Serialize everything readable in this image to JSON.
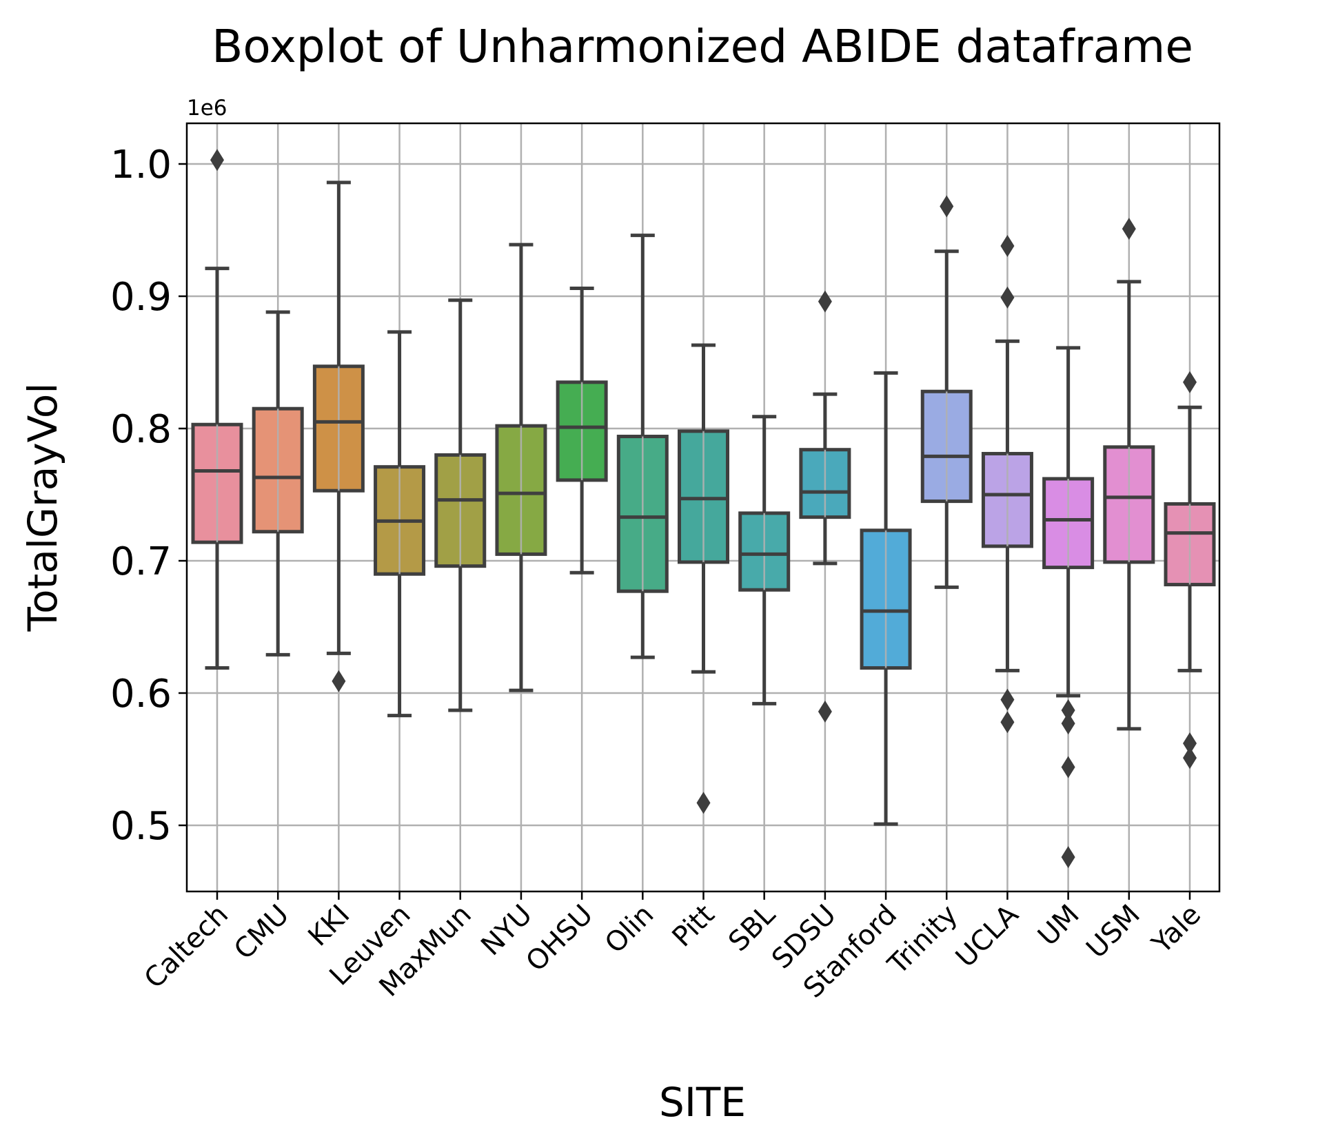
{
  "chart_data": {
    "type": "box",
    "title": "Boxplot of Unharmonized ABIDE dataframe",
    "xlabel": "SITE",
    "ylabel": "TotalGrayVol",
    "y_offset_label": "1e6",
    "y_scale": 1000000,
    "ylim": [
      0.45,
      1.03
    ],
    "yticks": [
      0.5,
      0.6,
      0.7,
      0.8,
      0.9,
      1.0
    ],
    "ytick_labels": [
      "0.5",
      "0.6",
      "0.7",
      "0.8",
      "0.9",
      "1.0"
    ],
    "grid": true,
    "categories": [
      "Caltech",
      "CMU",
      "KKI",
      "Leuven",
      "MaxMun",
      "NYU",
      "OHSU",
      "Olin",
      "Pitt",
      "SBL",
      "SDSU",
      "Stanford",
      "Trinity",
      "UCLA",
      "UM",
      "USM",
      "Yale"
    ],
    "boxes": [
      {
        "whislo": 0.619,
        "q1": 0.714,
        "med": 0.768,
        "q3": 0.803,
        "whishi": 0.921,
        "fliers": [
          1.003
        ],
        "color": "#e8909d"
      },
      {
        "whislo": 0.629,
        "q1": 0.722,
        "med": 0.763,
        "q3": 0.815,
        "whishi": 0.888,
        "fliers": [],
        "color": "#e59376"
      },
      {
        "whislo": 0.63,
        "q1": 0.753,
        "med": 0.805,
        "q3": 0.847,
        "whishi": 0.986,
        "fliers": [
          0.609
        ],
        "color": "#ce9147"
      },
      {
        "whislo": 0.583,
        "q1": 0.69,
        "med": 0.73,
        "q3": 0.771,
        "whishi": 0.873,
        "fliers": [],
        "color": "#b49a47"
      },
      {
        "whislo": 0.587,
        "q1": 0.696,
        "med": 0.746,
        "q3": 0.78,
        "whishi": 0.897,
        "fliers": [],
        "color": "#a1a046"
      },
      {
        "whislo": 0.602,
        "q1": 0.705,
        "med": 0.751,
        "q3": 0.802,
        "whishi": 0.939,
        "fliers": [],
        "color": "#86a944"
      },
      {
        "whislo": 0.691,
        "q1": 0.761,
        "med": 0.801,
        "q3": 0.835,
        "whishi": 0.906,
        "fliers": [],
        "color": "#45ad52"
      },
      {
        "whislo": 0.627,
        "q1": 0.677,
        "med": 0.733,
        "q3": 0.794,
        "whishi": 0.946,
        "fliers": [],
        "color": "#47ab87"
      },
      {
        "whislo": 0.616,
        "q1": 0.699,
        "med": 0.747,
        "q3": 0.798,
        "whishi": 0.863,
        "fliers": [
          0.517
        ],
        "color": "#45a89c"
      },
      {
        "whislo": 0.592,
        "q1": 0.678,
        "med": 0.705,
        "q3": 0.736,
        "whishi": 0.809,
        "fliers": [],
        "color": "#48aaaa"
      },
      {
        "whislo": 0.698,
        "q1": 0.733,
        "med": 0.752,
        "q3": 0.784,
        "whishi": 0.826,
        "fliers": [
          0.896,
          0.586
        ],
        "color": "#4aa9bb"
      },
      {
        "whislo": 0.501,
        "q1": 0.619,
        "med": 0.662,
        "q3": 0.723,
        "whishi": 0.842,
        "fliers": [],
        "color": "#52abd8"
      },
      {
        "whislo": 0.68,
        "q1": 0.745,
        "med": 0.779,
        "q3": 0.828,
        "whishi": 0.934,
        "fliers": [
          0.968
        ],
        "color": "#9aabe3"
      },
      {
        "whislo": 0.617,
        "q1": 0.711,
        "med": 0.75,
        "q3": 0.781,
        "whishi": 0.866,
        "fliers": [
          0.938,
          0.899,
          0.595,
          0.578
        ],
        "color": "#bba3e6"
      },
      {
        "whislo": 0.598,
        "q1": 0.695,
        "med": 0.731,
        "q3": 0.762,
        "whishi": 0.861,
        "fliers": [
          0.587,
          0.577,
          0.544,
          0.476
        ],
        "color": "#d98de4"
      },
      {
        "whislo": 0.573,
        "q1": 0.699,
        "med": 0.748,
        "q3": 0.786,
        "whishi": 0.911,
        "fliers": [
          0.951
        ],
        "color": "#e28fd1"
      },
      {
        "whislo": 0.617,
        "q1": 0.682,
        "med": 0.721,
        "q3": 0.743,
        "whishi": 0.816,
        "fliers": [
          0.835,
          0.562,
          0.551
        ],
        "color": "#e591b4"
      }
    ]
  }
}
